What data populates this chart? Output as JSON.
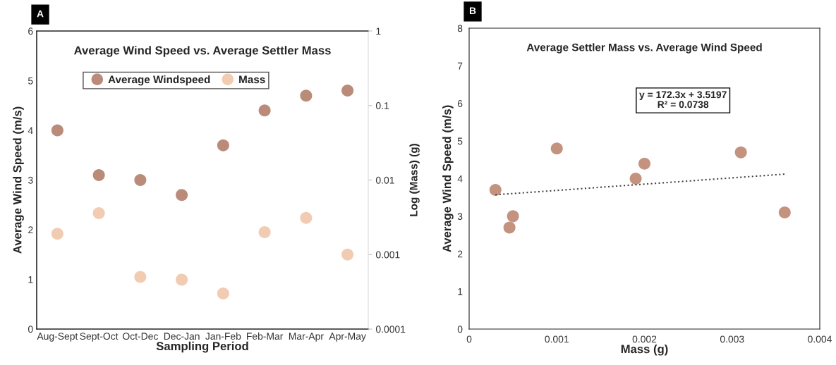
{
  "chart_data": [
    {
      "type": "scatter",
      "title": "Average Wind Speed vs. Average Settler Mass",
      "xlabel": "Sampling Period",
      "ylabel": "Average Wind Speed (m/s)",
      "y2label": "Log (Mass) (g)",
      "annotations": [
        "A"
      ],
      "categories": [
        "Aug-Sept",
        "Sept-Oct",
        "Oct-Dec",
        "Dec-Jan",
        "Jan-Feb",
        "Feb-Mar",
        "Mar-Apr",
        "Apr-May"
      ],
      "series": [
        {
          "name": "Average Windspeed",
          "color": "#b98b78",
          "values": [
            4.0,
            3.1,
            3.0,
            2.7,
            3.7,
            4.4,
            4.7,
            4.8
          ]
        },
        {
          "name": "Mass",
          "color": "#f2cbb3",
          "axis": "y2",
          "values": [
            0.0019,
            0.0036,
            0.0005,
            0.00046,
            0.0003,
            0.002,
            0.0031,
            0.001
          ]
        }
      ],
      "ylim": [
        0,
        6
      ],
      "yticks": [
        0,
        1,
        2,
        3,
        4,
        5,
        6
      ],
      "y2lim": [
        0.0001,
        1
      ],
      "y2ticks": [
        0.0001,
        0.001,
        0.01,
        0.1,
        1
      ],
      "log": "y2",
      "marker": "circle",
      "legend": "top",
      "grid": false
    },
    {
      "type": "scatter",
      "title": "Average Settler Mass vs. Average Wind Speed",
      "xlabel": "Mass (g)",
      "ylabel": "Average Wind Speed (m/s)",
      "annotations": [
        "B",
        "y = 172.3x + 3.5197\nR² = 0.0738"
      ],
      "series": [
        {
          "color": "#c4937f",
          "x": [
            0.0019,
            0.0036,
            0.0005,
            0.00046,
            0.0003,
            0.002,
            0.0031,
            0.001
          ],
          "values": [
            4.0,
            3.1,
            3.0,
            2.7,
            3.7,
            4.4,
            4.7,
            4.8
          ]
        },
        {
          "type": "line",
          "color": "#444444",
          "line_style": "dotted",
          "marker": "none",
          "x": [
            0.0003,
            0.0036
          ],
          "values": [
            3.57,
            4.12
          ]
        }
      ],
      "xlim": [
        0,
        0.004
      ],
      "xticks": [
        0,
        0.001,
        0.002,
        0.003,
        0.004
      ],
      "ylim": [
        0,
        8
      ],
      "yticks": [
        0,
        1,
        2,
        3,
        4,
        5,
        6,
        7,
        8
      ],
      "marker": "circle",
      "grid": false
    }
  ]
}
